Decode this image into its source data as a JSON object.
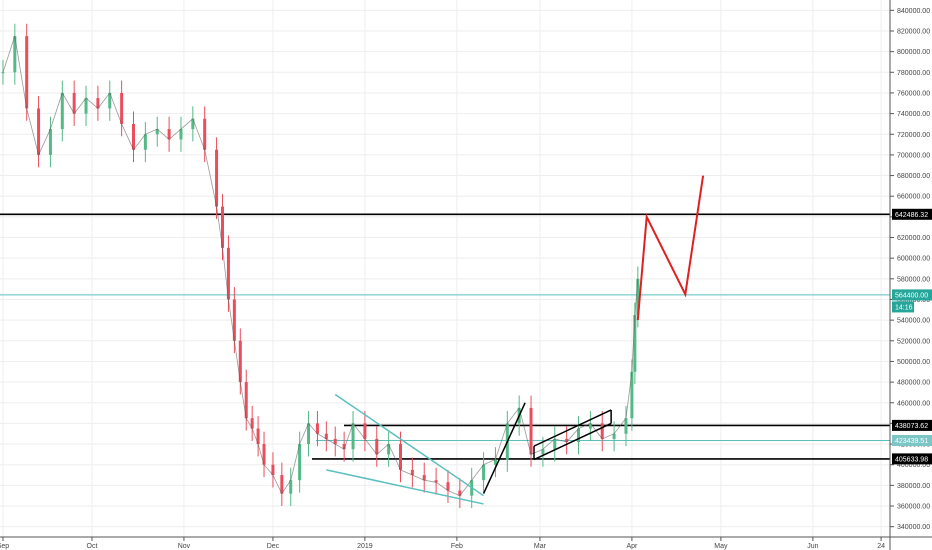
{
  "chart_data": {
    "type": "candlestick",
    "title": "",
    "xlabel": "",
    "ylabel": "",
    "ylim": [
      330000,
      850000
    ],
    "grid": true,
    "x_ticks": [
      "Sep",
      "Oct",
      "Nov",
      "Dec",
      "2019",
      "Feb",
      "Mar",
      "Apr",
      "May",
      "Jun",
      "24"
    ],
    "y_ticks": [
      "340000.00",
      "360000.00",
      "380000.00",
      "400000.00",
      "420000.00",
      "440000.00",
      "460000.00",
      "480000.00",
      "500000.00",
      "520000.00",
      "540000.00",
      "560000.00",
      "580000.00",
      "600000.00",
      "620000.00",
      "640000.00",
      "660000.00",
      "680000.00",
      "700000.00",
      "720000.00",
      "740000.00",
      "760000.00",
      "780000.00",
      "800000.00",
      "820000.00",
      "840000.00"
    ],
    "series": [
      {
        "kind": "price",
        "x": [
          "2018-09-01",
          "2018-09-05",
          "2018-09-09",
          "2018-09-13",
          "2018-09-17",
          "2018-09-21",
          "2018-09-25",
          "2018-09-29",
          "2018-10-03",
          "2018-10-07",
          "2018-10-11",
          "2018-10-15",
          "2018-10-19",
          "2018-10-23",
          "2018-10-27",
          "2018-10-31",
          "2018-11-04",
          "2018-11-08",
          "2018-11-12",
          "2018-11-14",
          "2018-11-16",
          "2018-11-18",
          "2018-11-20",
          "2018-11-22",
          "2018-11-24",
          "2018-11-26",
          "2018-11-28",
          "2018-12-01",
          "2018-12-04",
          "2018-12-07",
          "2018-12-10",
          "2018-12-13",
          "2018-12-16",
          "2018-12-19",
          "2018-12-22",
          "2018-12-25",
          "2018-12-28",
          "2019-01-01",
          "2019-01-05",
          "2019-01-09",
          "2019-01-13",
          "2019-01-17",
          "2019-01-21",
          "2019-01-25",
          "2019-01-29",
          "2019-02-02",
          "2019-02-06",
          "2019-02-10",
          "2019-02-14",
          "2019-02-18",
          "2019-02-22",
          "2019-02-26",
          "2019-03-02",
          "2019-03-06",
          "2019-03-10",
          "2019-03-14",
          "2019-03-18",
          "2019-03-22",
          "2019-03-26",
          "2019-03-30",
          "2019-04-01",
          "2019-04-02",
          "2019-04-03"
        ],
        "y": [
          780000,
          815000,
          745000,
          700000,
          725000,
          760000,
          740000,
          755000,
          745000,
          760000,
          730000,
          705000,
          720000,
          725000,
          715000,
          725000,
          735000,
          705000,
          650000,
          610000,
          560000,
          520000,
          480000,
          445000,
          435000,
          420000,
          400000,
          390000,
          372000,
          385000,
          420000,
          440000,
          430000,
          425000,
          420000,
          415000,
          440000,
          425000,
          410000,
          420000,
          395000,
          390000,
          385000,
          383000,
          375000,
          370000,
          385000,
          400000,
          405000,
          440000,
          455000,
          410000,
          415000,
          425000,
          422000,
          435000,
          440000,
          425000,
          430000,
          445000,
          490000,
          545000,
          580000
        ]
      }
    ],
    "annotations": [
      {
        "kind": "horizontal-line",
        "value": 642486.32,
        "label": "642486.32",
        "color": "#000000"
      },
      {
        "kind": "horizontal-line",
        "value": 564400.0,
        "label": "564400.00",
        "color": "#5bbfbf"
      },
      {
        "kind": "horizontal-line",
        "value": 438073.62,
        "label": "438073.62",
        "color": "#000000"
      },
      {
        "kind": "horizontal-line",
        "value": 423439.51,
        "label": "423439.51",
        "color": "#5bbfbf"
      },
      {
        "kind": "horizontal-line",
        "value": 405633.98,
        "label": "405633.98",
        "color": "#000000"
      },
      {
        "kind": "projection-path",
        "color": "#e02020",
        "points": [
          [
            "2019-04-03",
            540000
          ],
          [
            "2019-04-06",
            640000
          ],
          [
            "2019-04-19",
            565000
          ],
          [
            "2019-04-25",
            680000
          ]
        ]
      },
      {
        "kind": "trend-lines",
        "color": "#000000",
        "points": [
          [
            "2019-02-10",
            372000
          ],
          [
            "2019-02-24",
            460000
          ]
        ]
      },
      {
        "kind": "channel",
        "color": "#000000",
        "upper": [
          [
            "2019-02-27",
            418000
          ],
          [
            "2019-03-25",
            453000
          ]
        ],
        "lower": [
          [
            "2019-02-27",
            405000
          ],
          [
            "2019-03-25",
            440000
          ]
        ]
      },
      {
        "kind": "wedge",
        "color": "#5bbfbf",
        "upper": [
          [
            "2018-12-22",
            468000
          ],
          [
            "2019-02-10",
            370000
          ]
        ],
        "lower": [
          [
            "2018-12-19",
            395000
          ],
          [
            "2019-02-10",
            362000
          ]
        ]
      }
    ],
    "price_tag": {
      "value": "564400.00",
      "time": "14:16",
      "color": "#26a69a"
    }
  }
}
